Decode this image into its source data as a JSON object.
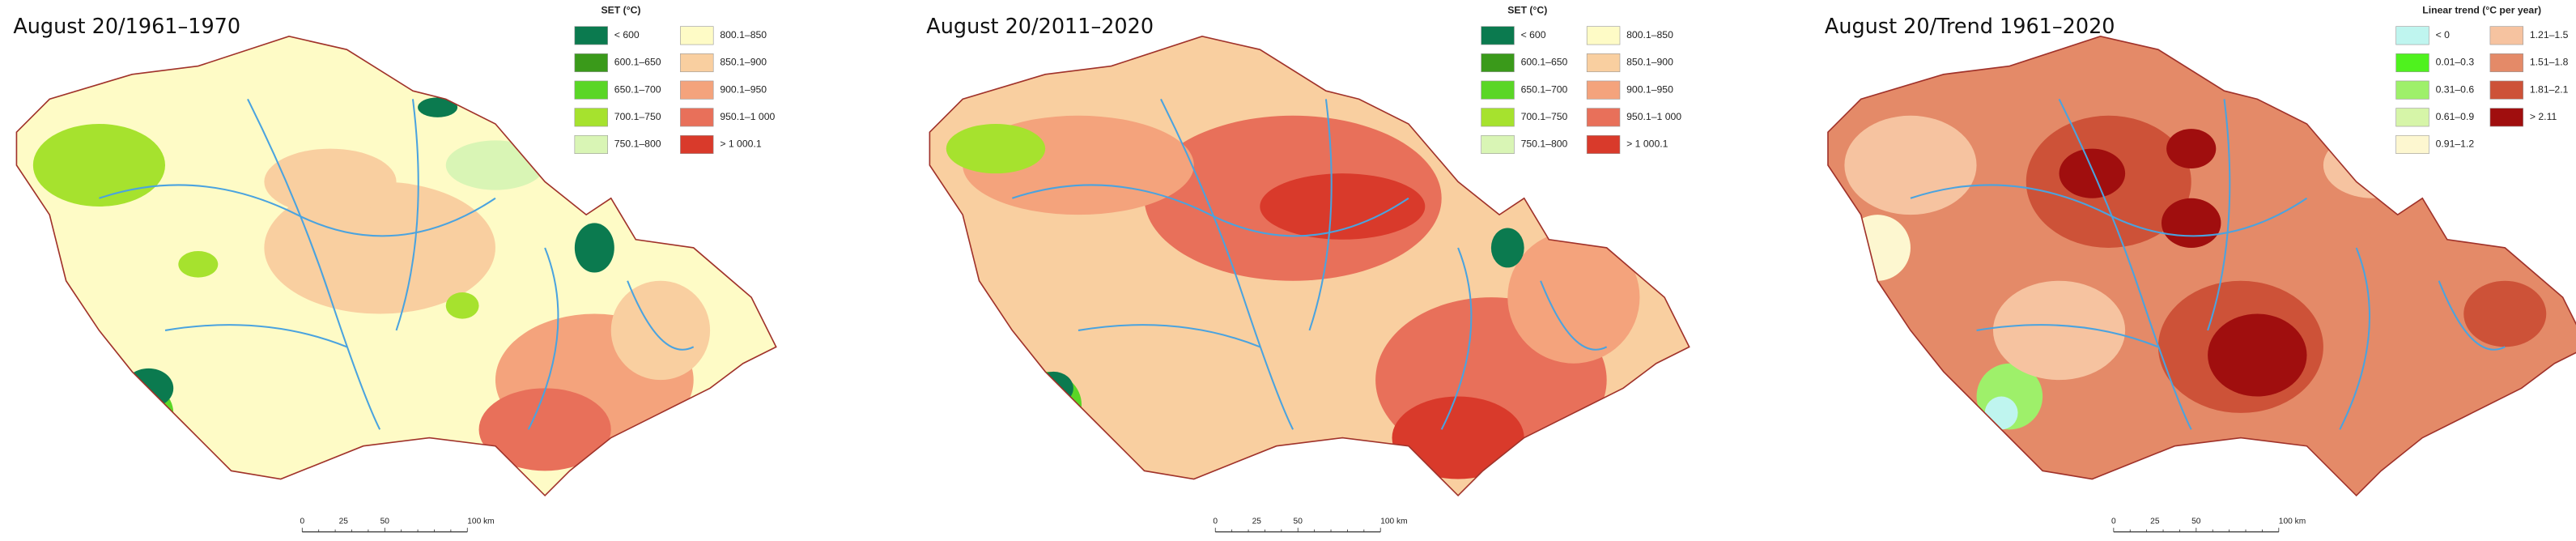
{
  "panels": [
    {
      "title": "August 20/1961–1970",
      "legend": {
        "title": "SET (°C)",
        "items": [
          {
            "label": "< 600",
            "color": "#0b7a4f"
          },
          {
            "label": "600.1–650",
            "color": "#3a9a1a"
          },
          {
            "label": "650.1–700",
            "color": "#5ad626"
          },
          {
            "label": "700.1–750",
            "color": "#a6e22e"
          },
          {
            "label": "750.1–800",
            "color": "#d9f5b5"
          },
          {
            "label": "800.1–850",
            "color": "#fefbc6"
          },
          {
            "label": "850.1–900",
            "color": "#f9cfa0"
          },
          {
            "label": "900.1–950",
            "color": "#f4a37c"
          },
          {
            "label": "950.1–1 000",
            "color": "#e8705a"
          },
          {
            "label": "> 1 000.1",
            "color": "#d93a2b"
          }
        ]
      },
      "scale_labels": [
        "0",
        "25",
        "50",
        "100 km"
      ]
    },
    {
      "title": "August 20/2011–2020",
      "legend": {
        "title": "SET (°C)",
        "items": [
          {
            "label": "< 600",
            "color": "#0b7a4f"
          },
          {
            "label": "600.1–650",
            "color": "#3a9a1a"
          },
          {
            "label": "650.1–700",
            "color": "#5ad626"
          },
          {
            "label": "700.1–750",
            "color": "#a6e22e"
          },
          {
            "label": "750.1–800",
            "color": "#d9f5b5"
          },
          {
            "label": "800.1–850",
            "color": "#fefbc6"
          },
          {
            "label": "850.1–900",
            "color": "#f9cfa0"
          },
          {
            "label": "900.1–950",
            "color": "#f4a37c"
          },
          {
            "label": "950.1–1 000",
            "color": "#e8705a"
          },
          {
            "label": "> 1 000.1",
            "color": "#d93a2b"
          }
        ]
      },
      "scale_labels": [
        "0",
        "25",
        "50",
        "100 km"
      ]
    },
    {
      "title": "August 20/Trend 1961–2020",
      "legend": {
        "title": "Linear trend (°C per year)",
        "items": [
          {
            "label": "< 0",
            "color": "#bff5ef"
          },
          {
            "label": "0.01–0.3",
            "color": "#4ff21e"
          },
          {
            "label": "0.31–0.6",
            "color": "#9ef06a"
          },
          {
            "label": "0.61–0.9",
            "color": "#d6f5a8"
          },
          {
            "label": "0.91–1.2",
            "color": "#fdf7d0"
          },
          {
            "label": "1.21–1.5",
            "color": "#f6c3a0"
          },
          {
            "label": "1.51–1.8",
            "color": "#e48a68"
          },
          {
            "label": "1.81–2.1",
            "color": "#cd5238"
          },
          {
            "label": "> 2.11",
            "color": "#a00e0e"
          }
        ]
      },
      "scale_labels": [
        "0",
        "25",
        "50",
        "100 km"
      ]
    }
  ]
}
